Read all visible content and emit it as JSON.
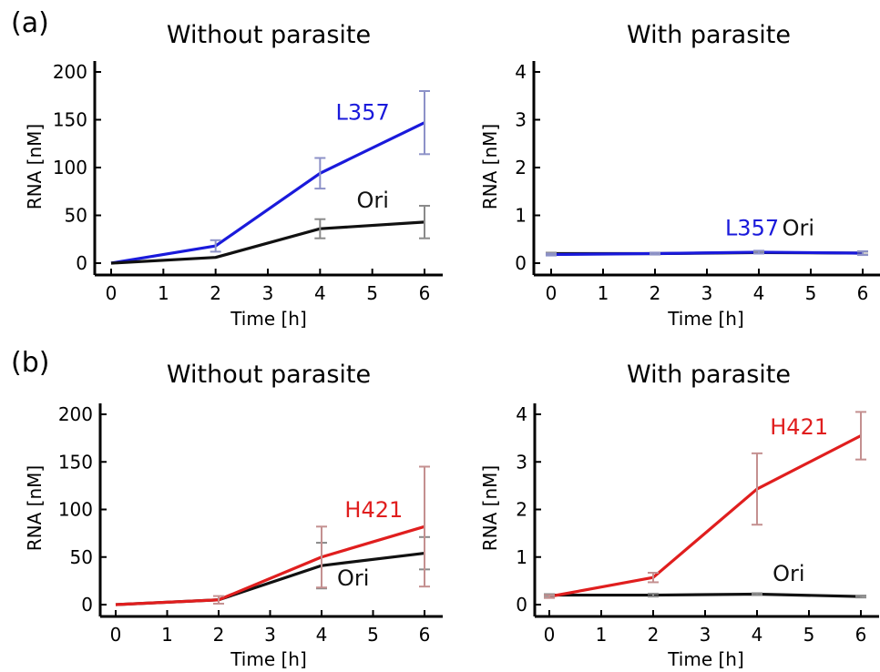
{
  "panel_labels": [
    "(a)",
    "(b)"
  ],
  "chart_data": [
    {
      "type": "line",
      "panel": "(a)",
      "title": "Without parasite",
      "xlabel": "Time [h]",
      "ylabel": "RNA [nM]",
      "xlim": [
        0,
        6
      ],
      "ylim": [
        0,
        200
      ],
      "xticks": [
        0,
        1,
        2,
        3,
        4,
        5,
        6
      ],
      "yticks": [
        0,
        50,
        100,
        150,
        200
      ],
      "x": [
        0,
        2,
        4,
        6
      ],
      "series": [
        {
          "name": "L357",
          "color": "#1a1adb",
          "errcolor": "#8d92c8",
          "values": [
            0,
            18,
            94,
            147
          ],
          "errors": [
            0,
            6,
            16,
            33
          ],
          "label_at": [
            4.3,
            150
          ],
          "label_anchor": "start"
        },
        {
          "name": "Ori",
          "color": "#111111",
          "errcolor": "#8a8a8a",
          "values": [
            0,
            6,
            36,
            43
          ],
          "errors": [
            0,
            0,
            10,
            17
          ],
          "label_at": [
            4.7,
            58
          ],
          "label_anchor": "start"
        }
      ]
    },
    {
      "type": "line",
      "panel": "(a)",
      "title": "With parasite",
      "xlabel": "Time [h]",
      "ylabel": "RNA [nM]",
      "xlim": [
        0,
        6
      ],
      "ylim": [
        0,
        4
      ],
      "xticks": [
        0,
        1,
        2,
        3,
        4,
        5,
        6
      ],
      "yticks": [
        0,
        1,
        2,
        3,
        4
      ],
      "x": [
        0,
        2,
        4,
        6
      ],
      "series": [
        {
          "name": "Ori",
          "color": "#111111",
          "errcolor": "#8a8a8a",
          "values": [
            0.2,
            0.2,
            0.22,
            0.21
          ],
          "errors": [
            0.02,
            0.02,
            0.02,
            0.03
          ],
          "label_at": [
            4.45,
            0.58
          ],
          "label_anchor": "start"
        },
        {
          "name": "L357",
          "color": "#1a1adb",
          "errcolor": "#8d92c8",
          "values": [
            0.18,
            0.2,
            0.23,
            0.21
          ],
          "errors": [
            0.02,
            0.02,
            0.03,
            0.04
          ],
          "label_at": [
            3.35,
            0.58
          ],
          "label_anchor": "start"
        }
      ]
    },
    {
      "type": "line",
      "panel": "(b)",
      "title": "Without parasite",
      "xlabel": "Time [h]",
      "ylabel": "RNA [nM]",
      "xlim": [
        0,
        6
      ],
      "ylim": [
        0,
        200
      ],
      "xticks": [
        0,
        1,
        2,
        3,
        4,
        5,
        6
      ],
      "yticks": [
        0,
        50,
        100,
        150,
        200
      ],
      "x": [
        0,
        2,
        4,
        6
      ],
      "series": [
        {
          "name": "Ori",
          "color": "#111111",
          "errcolor": "#8a8a8a",
          "values": [
            0,
            5,
            41,
            54
          ],
          "errors": [
            0,
            0,
            24,
            17
          ],
          "label_at": [
            4.3,
            20
          ],
          "label_anchor": "start"
        },
        {
          "name": "H421",
          "color": "#e01e1e",
          "errcolor": "#c49090",
          "values": [
            0,
            5,
            50,
            82
          ],
          "errors": [
            0,
            4,
            32,
            63
          ],
          "label_at": [
            4.45,
            92
          ],
          "label_anchor": "start"
        }
      ]
    },
    {
      "type": "line",
      "panel": "(b)",
      "title": "With parasite",
      "xlabel": "Time [h]",
      "ylabel": "RNA [nM]",
      "xlim": [
        0,
        6
      ],
      "ylim": [
        0,
        4
      ],
      "xticks": [
        0,
        1,
        2,
        3,
        4,
        5,
        6
      ],
      "yticks": [
        0,
        1,
        2,
        3,
        4
      ],
      "x": [
        0,
        2,
        4,
        6
      ],
      "series": [
        {
          "name": "Ori",
          "color": "#111111",
          "errcolor": "#8a8a8a",
          "values": [
            0.2,
            0.2,
            0.22,
            0.17
          ],
          "errors": [
            0.02,
            0.03,
            0.02,
            0.02
          ],
          "label_at": [
            4.3,
            0.5
          ],
          "label_anchor": "start"
        },
        {
          "name": "H421",
          "color": "#e01e1e",
          "errcolor": "#c49090",
          "values": [
            0.17,
            0.57,
            2.43,
            3.55
          ],
          "errors": [
            0.03,
            0.1,
            0.75,
            0.5
          ],
          "label_at": [
            4.25,
            3.58
          ],
          "label_anchor": "start"
        }
      ]
    }
  ]
}
